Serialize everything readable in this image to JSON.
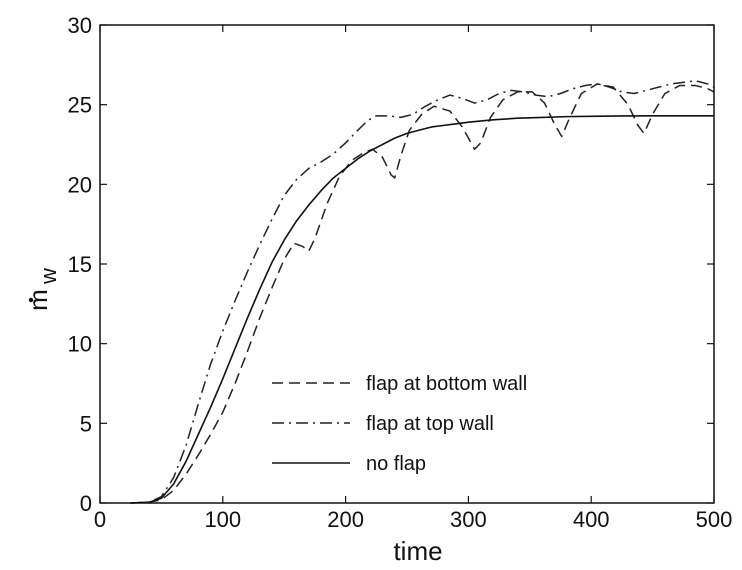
{
  "chart_data": {
    "type": "line",
    "title": "",
    "xlabel": "time",
    "ylabel": "m",
    "ylabel_subscript": "w",
    "xlim": [
      0,
      500
    ],
    "ylim": [
      0,
      30
    ],
    "x_ticks": [
      "0",
      "100",
      "200",
      "300",
      "400",
      "500"
    ],
    "y_ticks": [
      "0",
      "5",
      "10",
      "15",
      "20",
      "25",
      "30"
    ],
    "grid": false,
    "legend_position": "bottom-center",
    "series": [
      {
        "name": "flap at bottom wall",
        "style": "dashed",
        "color": "#222222",
        "points": [
          [
            25,
            0.0
          ],
          [
            40,
            0.05
          ],
          [
            50,
            0.2
          ],
          [
            60,
            0.8
          ],
          [
            70,
            1.8
          ],
          [
            80,
            3.0
          ],
          [
            90,
            4.3
          ],
          [
            100,
            5.7
          ],
          [
            110,
            7.5
          ],
          [
            120,
            9.5
          ],
          [
            130,
            11.6
          ],
          [
            140,
            13.5
          ],
          [
            150,
            15.3
          ],
          [
            158,
            16.3
          ],
          [
            165,
            16.1
          ],
          [
            170,
            15.8
          ],
          [
            175,
            16.6
          ],
          [
            185,
            18.8
          ],
          [
            195,
            20.5
          ],
          [
            205,
            21.5
          ],
          [
            215,
            22.0
          ],
          [
            222,
            22.2
          ],
          [
            230,
            21.7
          ],
          [
            237,
            20.6
          ],
          [
            240,
            20.4
          ],
          [
            245,
            21.8
          ],
          [
            252,
            23.4
          ],
          [
            262,
            24.4
          ],
          [
            272,
            24.9
          ],
          [
            285,
            24.6
          ],
          [
            295,
            23.6
          ],
          [
            305,
            22.2
          ],
          [
            310,
            22.6
          ],
          [
            318,
            24.2
          ],
          [
            328,
            25.3
          ],
          [
            340,
            25.8
          ],
          [
            352,
            25.8
          ],
          [
            362,
            25.1
          ],
          [
            370,
            23.8
          ],
          [
            376,
            23.0
          ],
          [
            382,
            24.1
          ],
          [
            392,
            25.7
          ],
          [
            405,
            26.3
          ],
          [
            418,
            26.1
          ],
          [
            430,
            25.0
          ],
          [
            438,
            23.7
          ],
          [
            443,
            23.2
          ],
          [
            450,
            24.4
          ],
          [
            460,
            25.7
          ],
          [
            472,
            26.2
          ],
          [
            485,
            26.2
          ],
          [
            495,
            26.0
          ],
          [
            500,
            25.8
          ]
        ]
      },
      {
        "name": "flap at top wall",
        "style": "dash-dot",
        "color": "#222222",
        "points": [
          [
            25,
            0.0
          ],
          [
            40,
            0.05
          ],
          [
            50,
            0.4
          ],
          [
            60,
            1.6
          ],
          [
            70,
            3.6
          ],
          [
            80,
            6.2
          ],
          [
            90,
            8.7
          ],
          [
            100,
            10.8
          ],
          [
            110,
            12.7
          ],
          [
            120,
            14.5
          ],
          [
            130,
            16.2
          ],
          [
            140,
            17.8
          ],
          [
            150,
            19.3
          ],
          [
            160,
            20.3
          ],
          [
            170,
            21.0
          ],
          [
            180,
            21.4
          ],
          [
            190,
            21.9
          ],
          [
            200,
            22.6
          ],
          [
            210,
            23.4
          ],
          [
            218,
            24.0
          ],
          [
            225,
            24.3
          ],
          [
            235,
            24.3
          ],
          [
            245,
            24.2
          ],
          [
            255,
            24.4
          ],
          [
            265,
            24.9
          ],
          [
            275,
            25.3
          ],
          [
            285,
            25.6
          ],
          [
            295,
            25.4
          ],
          [
            305,
            25.1
          ],
          [
            315,
            25.3
          ],
          [
            325,
            25.7
          ],
          [
            335,
            25.9
          ],
          [
            345,
            25.8
          ],
          [
            355,
            25.6
          ],
          [
            365,
            25.5
          ],
          [
            375,
            25.7
          ],
          [
            385,
            26.0
          ],
          [
            395,
            26.2
          ],
          [
            405,
            26.3
          ],
          [
            415,
            26.1
          ],
          [
            425,
            25.8
          ],
          [
            435,
            25.7
          ],
          [
            445,
            25.9
          ],
          [
            455,
            26.1
          ],
          [
            465,
            26.3
          ],
          [
            475,
            26.4
          ],
          [
            485,
            26.5
          ],
          [
            495,
            26.3
          ],
          [
            500,
            26.1
          ]
        ]
      },
      {
        "name": "no flap",
        "style": "solid",
        "color": "#111111",
        "points": [
          [
            25,
            0.0
          ],
          [
            40,
            0.05
          ],
          [
            50,
            0.3
          ],
          [
            60,
            1.2
          ],
          [
            70,
            2.6
          ],
          [
            80,
            4.3
          ],
          [
            90,
            6.0
          ],
          [
            100,
            7.8
          ],
          [
            110,
            9.7
          ],
          [
            120,
            11.6
          ],
          [
            130,
            13.4
          ],
          [
            140,
            15.1
          ],
          [
            150,
            16.5
          ],
          [
            160,
            17.7
          ],
          [
            170,
            18.7
          ],
          [
            180,
            19.6
          ],
          [
            190,
            20.4
          ],
          [
            200,
            21.0
          ],
          [
            210,
            21.6
          ],
          [
            220,
            22.1
          ],
          [
            230,
            22.5
          ],
          [
            240,
            22.9
          ],
          [
            250,
            23.2
          ],
          [
            260,
            23.4
          ],
          [
            270,
            23.6
          ],
          [
            280,
            23.7
          ],
          [
            290,
            23.8
          ],
          [
            300,
            23.9
          ],
          [
            320,
            24.05
          ],
          [
            340,
            24.15
          ],
          [
            360,
            24.2
          ],
          [
            380,
            24.25
          ],
          [
            400,
            24.27
          ],
          [
            425,
            24.29
          ],
          [
            450,
            24.3
          ],
          [
            475,
            24.3
          ],
          [
            500,
            24.3
          ]
        ]
      }
    ]
  }
}
